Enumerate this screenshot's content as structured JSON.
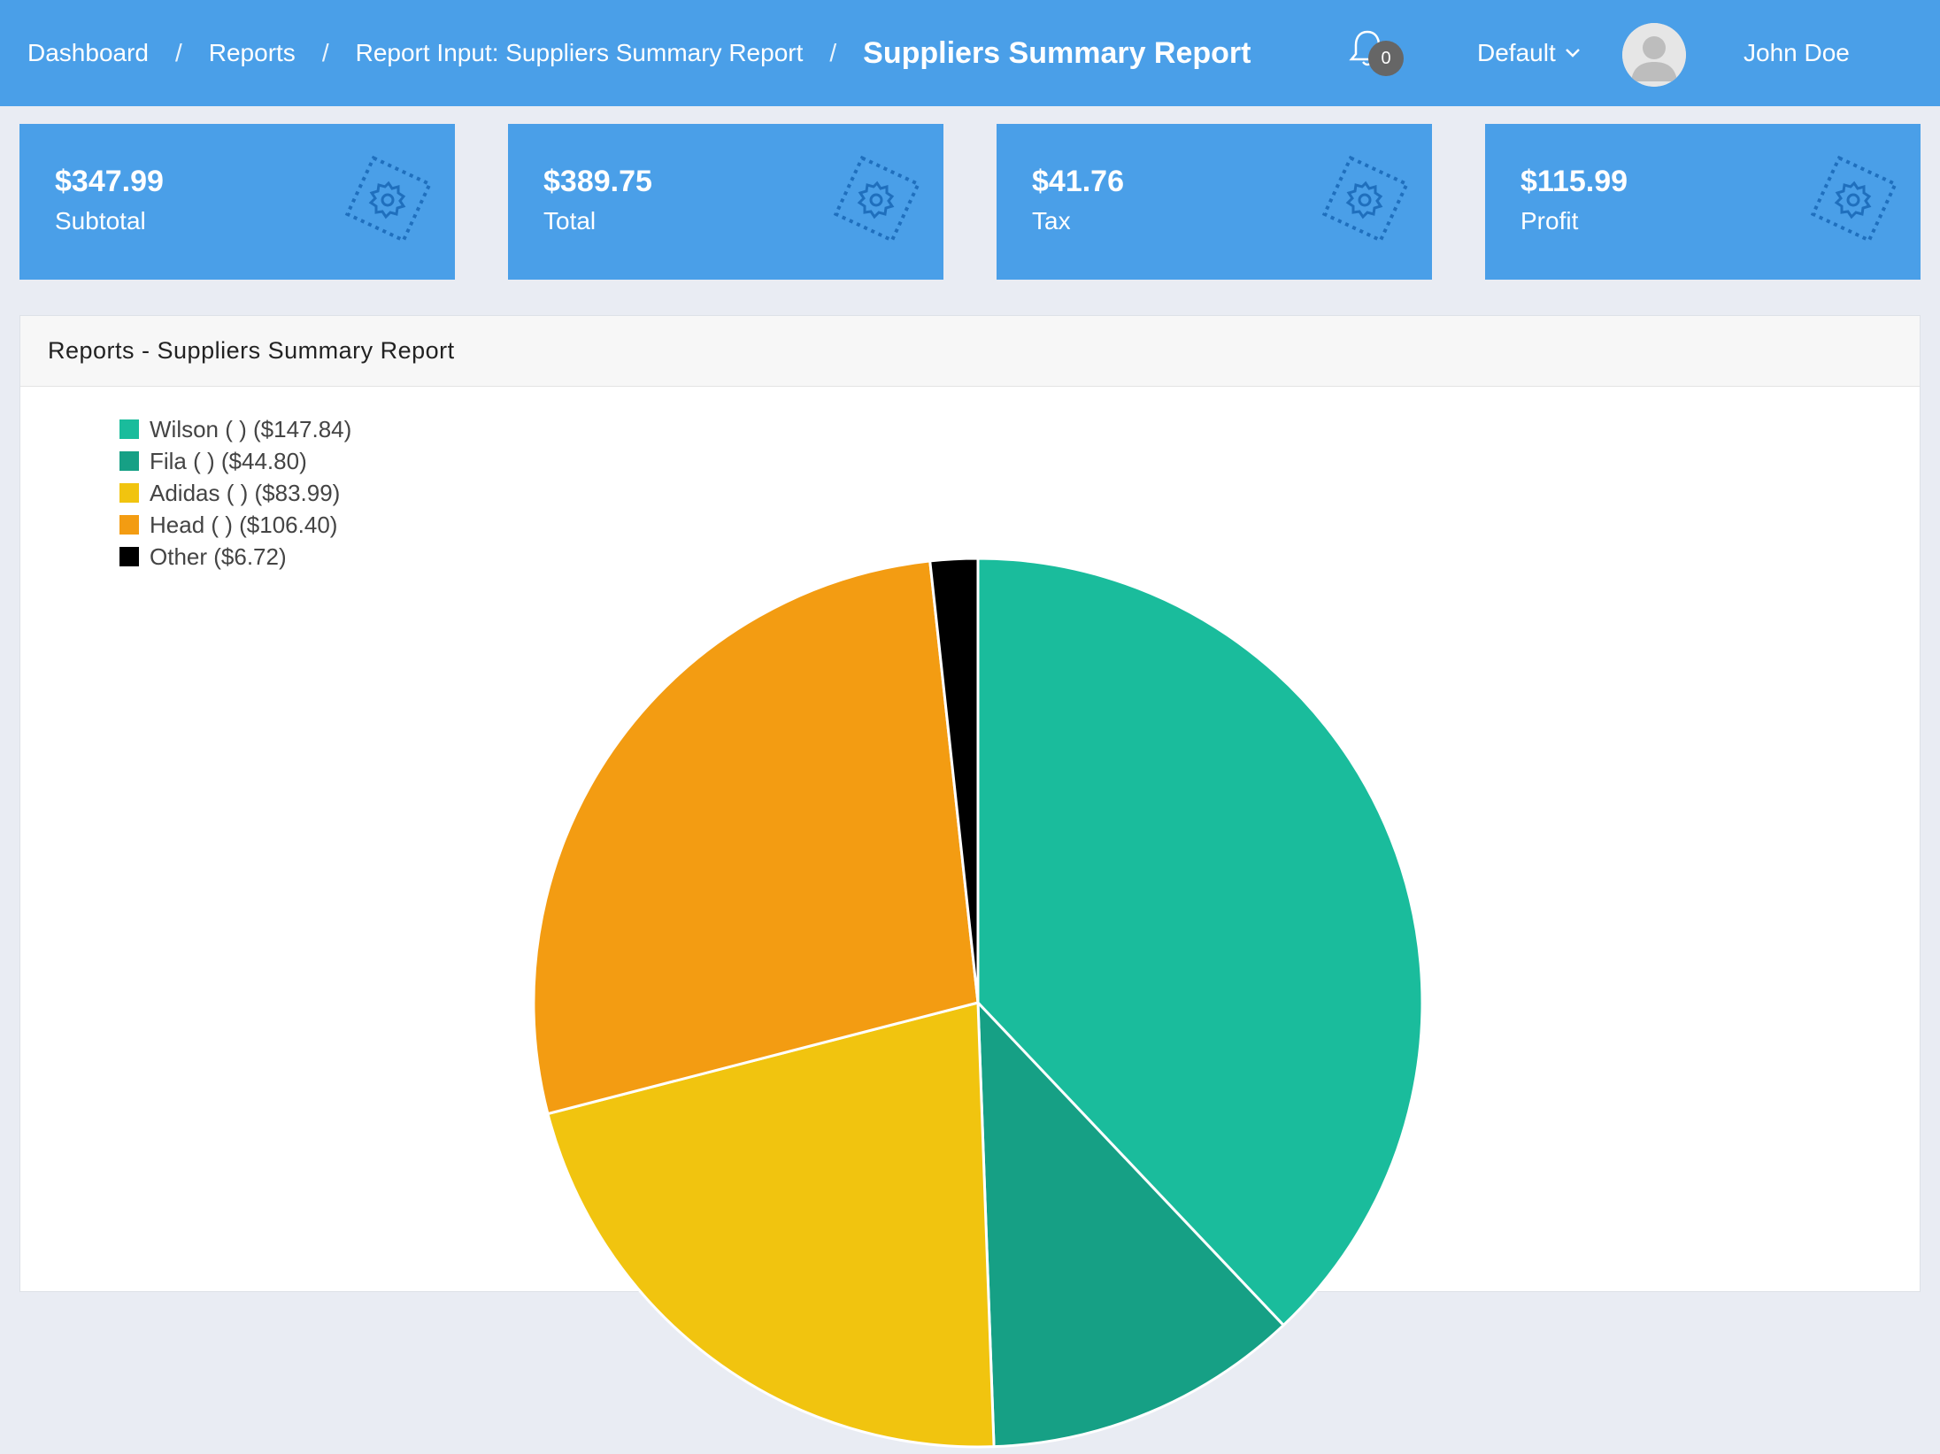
{
  "breadcrumb": {
    "items": [
      "Dashboard",
      "Reports",
      "Report Input: Suppliers Summary Report"
    ],
    "separator": "/",
    "current": "Suppliers Summary Report"
  },
  "header": {
    "notification_count": "0",
    "profile_select": "Default",
    "user_name": "John Doe"
  },
  "stats": [
    {
      "value": "$347.99",
      "label": "Subtotal"
    },
    {
      "value": "$389.75",
      "label": "Total"
    },
    {
      "value": "$41.76",
      "label": "Tax"
    },
    {
      "value": "$115.99",
      "label": "Profit"
    }
  ],
  "panel": {
    "title": "Reports - Suppliers Summary Report"
  },
  "chart_data": {
    "type": "pie",
    "categories": [
      "Wilson ( ) ($147.84)",
      "Fila ( ) ($44.80)",
      "Adidas ( ) ($83.99)",
      "Head ( ) ($106.40)",
      "Other ($6.72)"
    ],
    "values": [
      147.84,
      44.8,
      83.99,
      106.4,
      6.72
    ],
    "colors": [
      "#1abc9c",
      "#16a085",
      "#f1c40f",
      "#f39c12",
      "#000000"
    ],
    "legend_position": "top-left"
  },
  "colors": {
    "accent": "#4a9fe8",
    "page_bg": "#e9ecf3"
  }
}
